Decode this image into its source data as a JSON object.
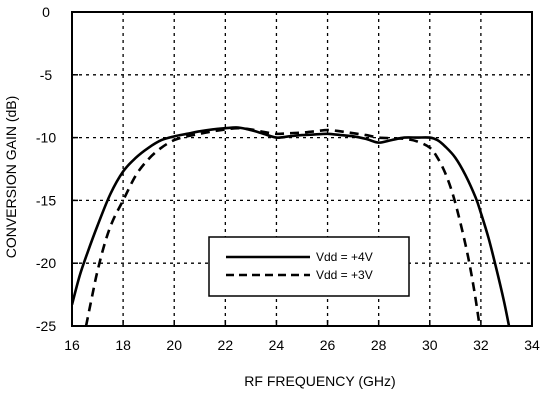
{
  "chart_data": {
    "type": "line",
    "title": "",
    "xlabel": "RF FREQUENCY (GHz)",
    "ylabel": "CONVERSION GAIN (dB)",
    "xlim": [
      16,
      34
    ],
    "ylim": [
      -25,
      0
    ],
    "xticks": [
      "16",
      "18",
      "20",
      "22",
      "24",
      "26",
      "28",
      "30",
      "32",
      "34"
    ],
    "yticks": [
      "0",
      "-5",
      "-10",
      "-15",
      "-20",
      "-25"
    ],
    "grid": true,
    "legend_position": "lower-center",
    "series": [
      {
        "name": "Vdd = +4V",
        "style": "solid",
        "color": "#000000",
        "points": [
          [
            16.0,
            -23.3
          ],
          [
            16.3,
            -21.0
          ],
          [
            16.6,
            -19.2
          ],
          [
            17.0,
            -17.0
          ],
          [
            17.5,
            -14.5
          ],
          [
            18.0,
            -12.7
          ],
          [
            18.5,
            -11.6
          ],
          [
            19.0,
            -10.8
          ],
          [
            19.5,
            -10.2
          ],
          [
            20.0,
            -9.9
          ],
          [
            20.5,
            -9.7
          ],
          [
            21.0,
            -9.5
          ],
          [
            21.5,
            -9.35
          ],
          [
            22.0,
            -9.25
          ],
          [
            22.5,
            -9.2
          ],
          [
            23.0,
            -9.4
          ],
          [
            23.5,
            -9.7
          ],
          [
            24.0,
            -10.0
          ],
          [
            24.5,
            -9.9
          ],
          [
            25.0,
            -9.8
          ],
          [
            25.5,
            -9.75
          ],
          [
            26.0,
            -9.7
          ],
          [
            26.5,
            -9.8
          ],
          [
            27.0,
            -9.9
          ],
          [
            27.5,
            -10.1
          ],
          [
            28.0,
            -10.4
          ],
          [
            28.5,
            -10.2
          ],
          [
            29.0,
            -10.0
          ],
          [
            29.5,
            -10.0
          ],
          [
            30.0,
            -10.0
          ],
          [
            30.3,
            -10.2
          ],
          [
            30.6,
            -10.7
          ],
          [
            31.0,
            -11.6
          ],
          [
            31.4,
            -13.0
          ],
          [
            31.8,
            -14.8
          ],
          [
            32.0,
            -16.0
          ],
          [
            32.3,
            -18.0
          ],
          [
            32.6,
            -20.4
          ],
          [
            32.9,
            -23.0
          ],
          [
            33.1,
            -25.0
          ]
        ]
      },
      {
        "name": "Vdd = +3V",
        "style": "dashed",
        "color": "#000000",
        "points": [
          [
            16.55,
            -25.0
          ],
          [
            16.8,
            -22.5
          ],
          [
            17.0,
            -20.6
          ],
          [
            17.3,
            -18.3
          ],
          [
            17.6,
            -16.6
          ],
          [
            18.0,
            -15.0
          ],
          [
            18.5,
            -13.0
          ],
          [
            19.0,
            -11.7
          ],
          [
            19.5,
            -10.8
          ],
          [
            20.0,
            -10.2
          ],
          [
            20.5,
            -9.9
          ],
          [
            21.0,
            -9.7
          ],
          [
            21.5,
            -9.5
          ],
          [
            22.0,
            -9.35
          ],
          [
            22.5,
            -9.25
          ],
          [
            23.0,
            -9.35
          ],
          [
            23.5,
            -9.55
          ],
          [
            24.0,
            -9.7
          ],
          [
            24.5,
            -9.65
          ],
          [
            25.0,
            -9.6
          ],
          [
            25.5,
            -9.5
          ],
          [
            26.0,
            -9.4
          ],
          [
            26.5,
            -9.5
          ],
          [
            27.0,
            -9.65
          ],
          [
            27.5,
            -9.8
          ],
          [
            28.0,
            -10.0
          ],
          [
            28.5,
            -10.05
          ],
          [
            29.0,
            -10.1
          ],
          [
            29.5,
            -10.3
          ],
          [
            30.0,
            -10.8
          ],
          [
            30.3,
            -11.6
          ],
          [
            30.6,
            -12.8
          ],
          [
            30.9,
            -14.5
          ],
          [
            31.2,
            -16.8
          ],
          [
            31.5,
            -19.5
          ],
          [
            31.75,
            -22.3
          ],
          [
            31.95,
            -25.0
          ]
        ]
      }
    ]
  }
}
